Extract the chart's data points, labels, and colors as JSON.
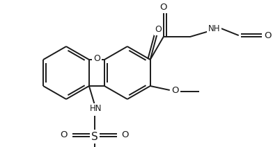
{
  "bg_color": "#ffffff",
  "line_color": "#1a1a1a",
  "lw": 1.4,
  "figsize": [
    3.92,
    2.12
  ],
  "dpi": 100,
  "xlim": [
    0,
    392
  ],
  "ylim": [
    0,
    212
  ]
}
